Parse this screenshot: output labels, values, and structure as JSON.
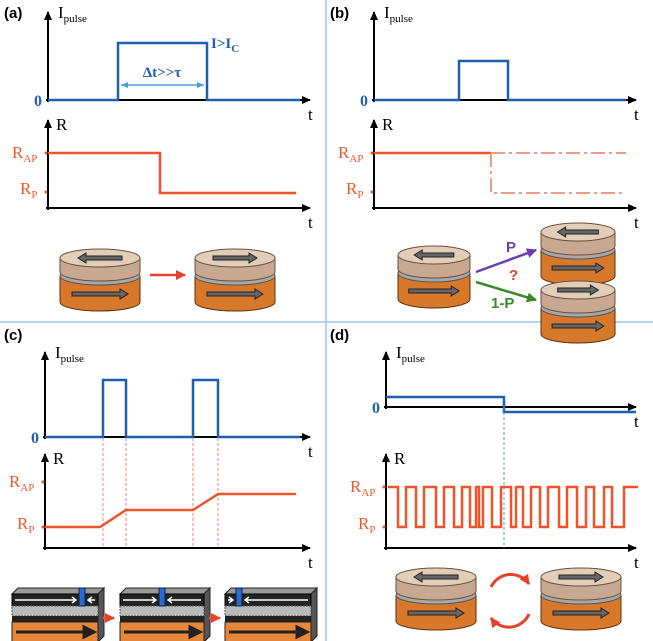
{
  "panels": [
    {
      "label": "(a)",
      "pulse_axis": {
        "name": {
          "main": "I",
          "sub": "pulse"
        },
        "zero": "0",
        "t": "t"
      },
      "pulse_label": {
        "main": "I>I",
        "sub": "C"
      },
      "duration_label": "Δt>>τ",
      "r_axis": {
        "name": "R",
        "high": {
          "main": "R",
          "sub": "AP"
        },
        "low": {
          "main": "R",
          "sub": "P"
        },
        "t": "t"
      }
    },
    {
      "label": "(b)",
      "pulse_axis": {
        "name": {
          "main": "I",
          "sub": "pulse"
        },
        "zero": "0",
        "t": "t"
      },
      "r_axis": {
        "name": "R",
        "high": {
          "main": "R",
          "sub": "AP"
        },
        "low": {
          "main": "R",
          "sub": "P"
        },
        "t": "t"
      },
      "outcomes": {
        "p": "P",
        "question": "?",
        "q": "1-P"
      }
    },
    {
      "label": "(c)",
      "pulse_axis": {
        "name": {
          "main": "I",
          "sub": "pulse"
        },
        "zero": "0",
        "t": "t"
      },
      "r_axis": {
        "name": "R",
        "high": {
          "main": "R",
          "sub": "AP"
        },
        "low": {
          "main": "R",
          "sub": "P"
        },
        "t": "t"
      }
    },
    {
      "label": "(d)",
      "pulse_axis": {
        "name": {
          "main": "I",
          "sub": "pulse"
        },
        "zero": "0",
        "t": "t"
      },
      "r_axis": {
        "name": "R",
        "high": {
          "main": "R",
          "sub": "AP"
        },
        "low": {
          "main": "R",
          "sub": "P"
        },
        "t": "t"
      }
    }
  ]
}
